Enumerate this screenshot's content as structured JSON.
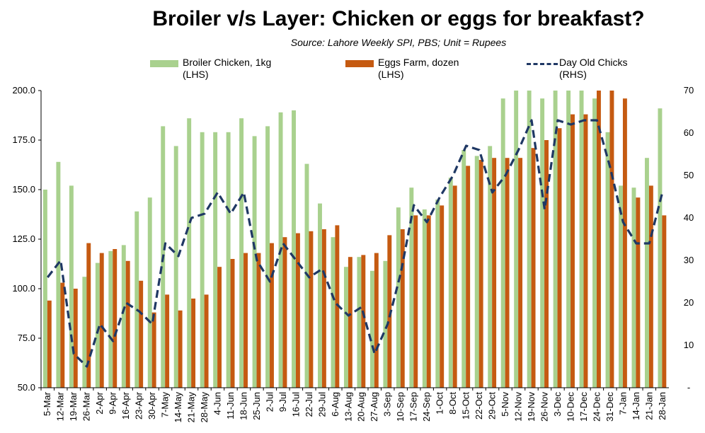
{
  "chart_data": {
    "type": "bar-line",
    "title": "Broiler v/s Layer: Chicken or eggs for breakfast?",
    "subtitle": "Source: Lahore Weekly SPI, PBS; Unit = Rupees",
    "legend_position": "top",
    "grid": false,
    "categories": [
      "5-Mar",
      "12-Mar",
      "19-Mar",
      "26-Mar",
      "2-Apr",
      "9-Apr",
      "16-Apr",
      "23-Apr",
      "30-Apr",
      "7-May",
      "14-May",
      "21-May",
      "28-May",
      "4-Jun",
      "11-Jun",
      "18-Jun",
      "25-Jun",
      "2-Jul",
      "9-Jul",
      "16-Jul",
      "22-Jul",
      "29-Jul",
      "6-Aug",
      "13-Aug",
      "20-Aug",
      "27-Aug",
      "3-Sep",
      "10-Sep",
      "17-Sep",
      "24-Sep",
      "1-Oct",
      "8-Oct",
      "15-Oct",
      "22-Oct",
      "29-Oct",
      "5-Nov",
      "12-Nov",
      "19-Nov",
      "26-Nov",
      "3-Dec",
      "10-Dec",
      "17-Dec",
      "24-Dec",
      "31-Dec",
      "7-Jan",
      "14-Jan",
      "21-Jan",
      "28-Jan"
    ],
    "series": [
      {
        "name": "Broiler Chicken, 1kg",
        "axis_label": "(LHS)",
        "type": "bar",
        "axis": "left",
        "color": "#a9d18e",
        "values": [
          150,
          164,
          152,
          106,
          113,
          119,
          122,
          139,
          146,
          182,
          172,
          186,
          179,
          179,
          179,
          186,
          177,
          182,
          189,
          190,
          163,
          143,
          126,
          111,
          116,
          109,
          114,
          141,
          151,
          140,
          145,
          156,
          170,
          167,
          172,
          196,
          200,
          200,
          196,
          200,
          200,
          200,
          196,
          179,
          152,
          151,
          166,
          191
        ]
      },
      {
        "name": "Eggs Farm, dozen",
        "axis_label": "(LHS)",
        "type": "bar",
        "axis": "left",
        "color": "#c55a11",
        "values": [
          94,
          103,
          100,
          123,
          118,
          120,
          114,
          104,
          88,
          97,
          89,
          95,
          97,
          111,
          115,
          118,
          118,
          123,
          126,
          128,
          129,
          130,
          132,
          116,
          117,
          118,
          127,
          130,
          137,
          137,
          142,
          152,
          162,
          165,
          166,
          166,
          166,
          171,
          175,
          181,
          188,
          188,
          200,
          200,
          196,
          146,
          152,
          137
        ]
      },
      {
        "name": "Day Old Chicks",
        "axis_label": "(RHS)",
        "type": "line",
        "axis": "right",
        "color": "#1f3864",
        "style": "dashed",
        "values": [
          26,
          30,
          8,
          5,
          15,
          11,
          20,
          18,
          15,
          34,
          31,
          40,
          41,
          46,
          41,
          46,
          30,
          25,
          34,
          30,
          26,
          28,
          20,
          17,
          19,
          8,
          15,
          27,
          43,
          39,
          45,
          50,
          57,
          56,
          46,
          50,
          56,
          63,
          42,
          63,
          62,
          63,
          63,
          52,
          39,
          34,
          34,
          46
        ]
      }
    ],
    "y_left": {
      "min": 50,
      "max": 200,
      "ticks": [
        "50.0",
        "75.0",
        "100.0",
        "125.0",
        "150.0",
        "175.0",
        "200.0"
      ]
    },
    "y_right": {
      "min": 0,
      "max": 70,
      "ticks": [
        "-",
        "10",
        "20",
        "30",
        "40",
        "50",
        "60",
        "70"
      ]
    }
  }
}
